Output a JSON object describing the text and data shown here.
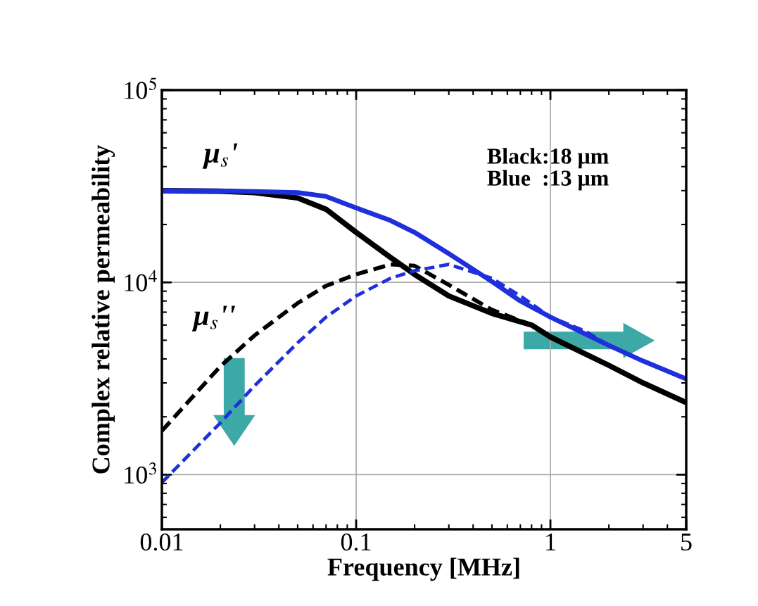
{
  "chart_data": {
    "type": "line",
    "xlabel": "Frequency [MHz]",
    "ylabel": "Complex relative permeability",
    "log": "xy",
    "grid": true,
    "legend": false,
    "marker": "none",
    "xlim": [
      0.01,
      5
    ],
    "xticks": [
      0.01,
      0.1,
      1,
      5
    ],
    "ylim": [
      520,
      100000
    ],
    "yticks": [
      {
        "value": 1000,
        "label": "10$^{3}$"
      },
      {
        "value": 10000,
        "label": "10$^{4}$"
      },
      {
        "value": 100000,
        "label": "10$^{5}$"
      }
    ],
    "annotations": [
      "μ$_{s}$'",
      "μ$_{s}$''",
      "Black:18 μm\nBlue  :13 μm"
    ],
    "series": [
      {
        "color": "#000000",
        "line_style": "solid",
        "x": [
          0.01,
          0.02,
          0.03,
          0.05,
          0.07,
          0.1,
          0.15,
          0.2,
          0.3,
          0.5,
          0.8,
          1,
          2,
          3,
          5
        ],
        "values": [
          30000,
          29800,
          29300,
          27500,
          24000,
          18200,
          13500,
          11000,
          8500,
          6900,
          6000,
          5200,
          3700,
          3000,
          2370
        ]
      },
      {
        "color": "#1f2fdc",
        "line_style": "solid",
        "x": [
          0.01,
          0.02,
          0.03,
          0.05,
          0.07,
          0.1,
          0.15,
          0.2,
          0.3,
          0.5,
          0.7,
          1,
          2,
          3,
          5
        ],
        "values": [
          30000,
          29900,
          29700,
          29300,
          28000,
          24400,
          21000,
          18200,
          14100,
          10100,
          8000,
          6600,
          4700,
          3900,
          3150
        ]
      },
      {
        "color": "#000000",
        "line_style": "dashed",
        "x": [
          0.01,
          0.02,
          0.03,
          0.05,
          0.07,
          0.1,
          0.15,
          0.2,
          0.3,
          0.5,
          0.8,
          0.9
        ],
        "values": [
          1690,
          3660,
          5300,
          7800,
          9600,
          11000,
          12400,
          12200,
          9700,
          7200,
          6000,
          5600
        ]
      },
      {
        "color": "#1f2fdc",
        "line_style": "dashed",
        "x": [
          0.01,
          0.02,
          0.03,
          0.05,
          0.07,
          0.1,
          0.15,
          0.2,
          0.3,
          0.5,
          0.7,
          1,
          1.5,
          2
        ],
        "values": [
          910,
          1860,
          2900,
          4850,
          6600,
          8500,
          10500,
          11500,
          12400,
          10500,
          8500,
          6600,
          5600,
          4700
        ]
      }
    ]
  }
}
